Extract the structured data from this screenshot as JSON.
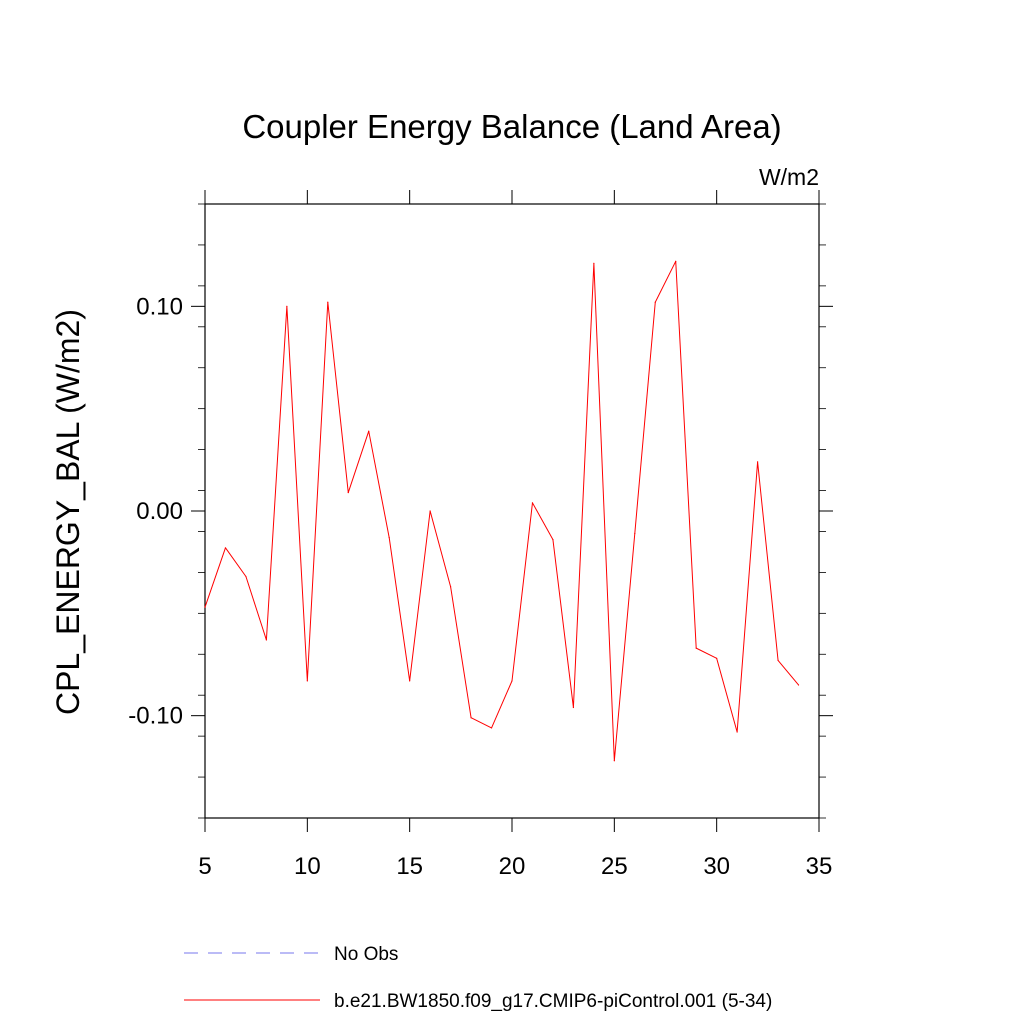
{
  "chart_data": {
    "type": "line",
    "title": "Coupler Energy Balance (Land Area)",
    "units": "W/m2",
    "xlabel": "",
    "ylabel": "CPL_ENERGY_BAL  (W/m2)",
    "xlim": [
      5,
      35
    ],
    "ylim": [
      -0.15,
      0.15
    ],
    "x_ticks": [
      5,
      10,
      15,
      20,
      25,
      30,
      35
    ],
    "x_tick_labels": [
      "5",
      "10",
      "15",
      "20",
      "25",
      "30",
      "35"
    ],
    "y_ticks": [
      -0.1,
      0.0,
      0.1
    ],
    "y_tick_labels": [
      "-0.10",
      "0.00",
      "0.10"
    ],
    "grid": false,
    "series": [
      {
        "name": "b.e21.BW1850.f09_g17.CMIP6-piControl.001 (5-34)",
        "color": "#ff0000",
        "x": [
          5,
          6,
          7,
          8,
          9,
          10,
          11,
          12,
          13,
          14,
          15,
          16,
          17,
          18,
          19,
          20,
          21,
          22,
          23,
          24,
          25,
          26,
          27,
          28,
          29,
          30,
          31,
          32,
          33,
          34
        ],
        "values": [
          -0.047,
          -0.018,
          -0.032,
          -0.063,
          0.1,
          -0.083,
          0.102,
          0.009,
          0.039,
          -0.013,
          -0.083,
          0.0,
          -0.037,
          -0.101,
          -0.106,
          -0.083,
          0.004,
          -0.014,
          -0.096,
          0.121,
          -0.122,
          -0.011,
          0.102,
          0.122,
          -0.067,
          -0.072,
          -0.108,
          0.024,
          -0.073,
          -0.085
        ]
      }
    ],
    "legend": [
      {
        "label": "No Obs",
        "color": "#7777ee",
        "style": "dashed"
      },
      {
        "label": "b.e21.BW1850.f09_g17.CMIP6-piControl.001 (5-34)",
        "color": "#ff0000",
        "style": "solid"
      }
    ],
    "legend_position": "bottom"
  }
}
